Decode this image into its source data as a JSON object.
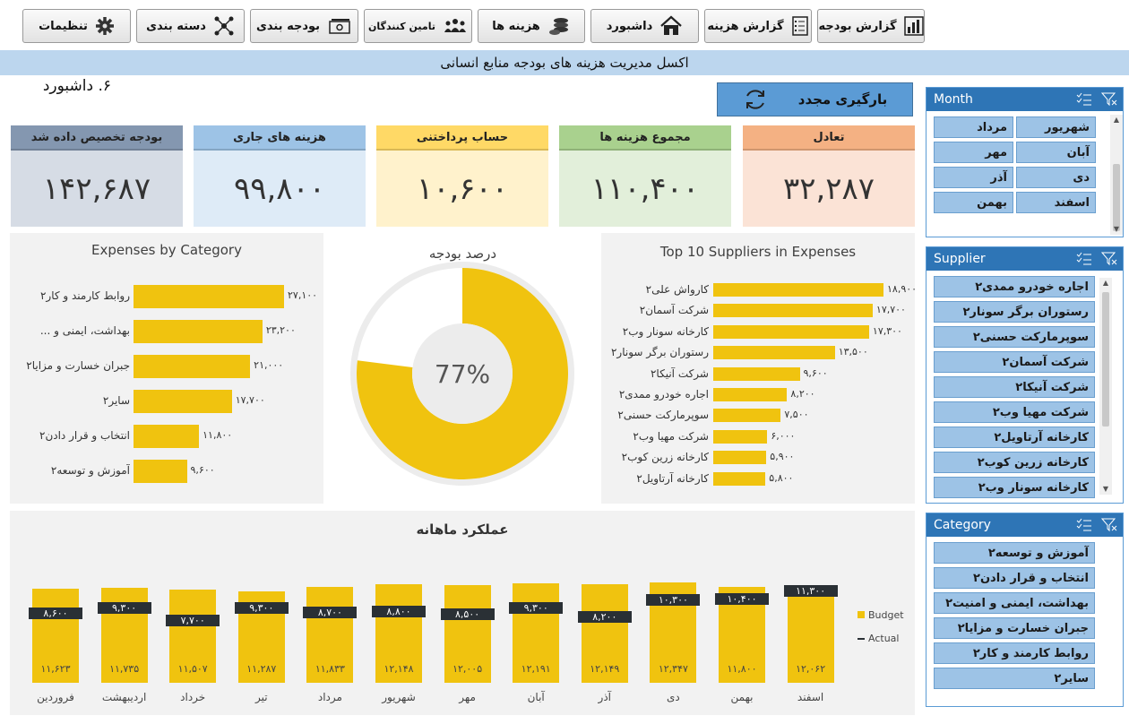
{
  "toolbar": {
    "buttons": [
      {
        "label": "گزارش بودجه",
        "icon": "bar-chart-icon"
      },
      {
        "label": "گزارش هزینه",
        "icon": "checklist-icon"
      },
      {
        "label": "داشبورد",
        "icon": "home-icon"
      },
      {
        "label": "هزینه ها",
        "icon": "coins-icon"
      },
      {
        "label": "تامین کنندگان",
        "icon": "people-icon"
      },
      {
        "label": "بودجه بندی",
        "icon": "money-icon"
      },
      {
        "label": "دسته بندی",
        "icon": "network-icon"
      },
      {
        "label": "تنظیمات",
        "icon": "gear-icon"
      }
    ]
  },
  "banner": "اکسل مدیریت هزینه های بودجه منابع انسانی",
  "dashboard_title": "۶. داشبورد",
  "reload_label": "بارگیری مجدد",
  "kpis": [
    {
      "label": "تعادل",
      "value": "۳۲,۲۸۷",
      "head_color": "#f4b183",
      "body_color": "#fbe3d6"
    },
    {
      "label": "مجموع هزینه ها",
      "value": "۱۱۰,۴۰۰",
      "head_color": "#a9d18e",
      "body_color": "#e2efda"
    },
    {
      "label": "حساب پرداختنی",
      "value": "۱۰,۶۰۰",
      "head_color": "#ffd966",
      "body_color": "#fff2cc"
    },
    {
      "label": "هزینه های جاری",
      "value": "۹۹,۸۰۰",
      "head_color": "#9dc3e6",
      "body_color": "#deebf7"
    },
    {
      "label": "بودجه تخصیص داده شد",
      "value": "۱۴۲,۶۸۷",
      "head_color": "#8497b0",
      "body_color": "#d6dce5"
    }
  ],
  "expenses_by_category": {
    "title": "Expenses by Category",
    "rows": [
      {
        "label": "روابط کارمند و کار۲",
        "value": 27100,
        "value_text": "۲۷,۱۰۰"
      },
      {
        "label": "بهداشت، ایمنی و ...",
        "value": 23200,
        "value_text": "۲۳,۲۰۰"
      },
      {
        "label": "جبران خسارت و مزایا۲",
        "value": 21000,
        "value_text": "۲۱,۰۰۰"
      },
      {
        "label": "سایر۲",
        "value": 17700,
        "value_text": "۱۷,۷۰۰"
      },
      {
        "label": "انتخاب و قرار دادن۲",
        "value": 11800,
        "value_text": "۱۱,۸۰۰"
      },
      {
        "label": "آموزش و توسعه۲",
        "value": 9600,
        "value_text": "۹,۶۰۰"
      }
    ]
  },
  "budget_percent": {
    "title": "درصد بودجه",
    "value": 0.77,
    "label": "77%"
  },
  "top_suppliers": {
    "title": "Top 10 Suppliers in Expenses",
    "rows": [
      {
        "label": "کارواش علی۲",
        "value": 18900,
        "value_text": "۱۸,۹۰۰"
      },
      {
        "label": "شرکت آسمان۲",
        "value": 17700,
        "value_text": "۱۷,۷۰۰"
      },
      {
        "label": "کارخانه سونار وب۲",
        "value": 17300,
        "value_text": "۱۷,۳۰۰"
      },
      {
        "label": "رستوران برگر سونار۲",
        "value": 13500,
        "value_text": "۱۳,۵۰۰"
      },
      {
        "label": "شرکت آنیکا۲",
        "value": 9600,
        "value_text": "۹,۶۰۰"
      },
      {
        "label": "اجاره خودرو ممدی۲",
        "value": 8200,
        "value_text": "۸,۲۰۰"
      },
      {
        "label": "سوپرمارکت حسنی۲",
        "value": 7500,
        "value_text": "۷,۵۰۰"
      },
      {
        "label": "شرکت مهیا وب۲",
        "value": 6000,
        "value_text": "۶,۰۰۰"
      },
      {
        "label": "کارخانه زرین کوب۲",
        "value": 5900,
        "value_text": "۵,۹۰۰"
      },
      {
        "label": "کارخانه آرتاویل۲",
        "value": 5800,
        "value_text": "۵,۸۰۰"
      }
    ]
  },
  "chart_data": {
    "type": "bar",
    "title": "عملکرد ماهانه",
    "categories": [
      "فروردین",
      "اردیبهشت",
      "خرداد",
      "تیر",
      "مرداد",
      "شهریور",
      "مهر",
      "آبان",
      "آذر",
      "دی",
      "بهمن",
      "اسفند"
    ],
    "series": [
      {
        "name": "Budget",
        "values": [
          11623,
          11735,
          11507,
          11287,
          11833,
          12148,
          12005,
          12191,
          12149,
          12347,
          11800,
          12062
        ],
        "labels": [
          "۱۱,۶۲۳",
          "۱۱,۷۳۵",
          "۱۱,۵۰۷",
          "۱۱,۲۸۷",
          "۱۱,۸۳۳",
          "۱۲,۱۴۸",
          "۱۲,۰۰۵",
          "۱۲,۱۹۱",
          "۱۲,۱۴۹",
          "۱۲,۳۴۷",
          "۱۱,۸۰۰",
          "۱۲,۰۶۲"
        ]
      },
      {
        "name": "Actual",
        "values": [
          8600,
          9300,
          7700,
          9300,
          8700,
          8800,
          8500,
          9300,
          8200,
          10300,
          10400,
          11300
        ],
        "labels": [
          "۸,۶۰۰",
          "۹,۳۰۰",
          "۷,۷۰۰",
          "۹,۳۰۰",
          "۸,۷۰۰",
          "۸,۸۰۰",
          "۸,۵۰۰",
          "۹,۳۰۰",
          "۸,۲۰۰",
          "۱۰,۳۰۰",
          "۱۰,۴۰۰",
          "۱۱,۳۰۰"
        ]
      }
    ],
    "legend": [
      "Budget",
      "Actual"
    ],
    "legend_position": "right",
    "colors": {
      "budget": "#f0c30f",
      "actual": "#2a3035"
    }
  },
  "slicers": {
    "month": {
      "title": "Month",
      "items": [
        "شهریور",
        "مرداد",
        "آبان",
        "مهر",
        "دی",
        "آذر",
        "اسفند",
        "بهمن"
      ]
    },
    "supplier": {
      "title": "Supplier",
      "items": [
        "اجاره خودرو ممدی۲",
        "رستوران برگر سونار۲",
        "سوپرمارکت حسنی۲",
        "شرکت آسمان۲",
        "شرکت آنیکا۲",
        "شرکت مهیا وب۲",
        "کارخانه آرتاویل۲",
        "کارخانه زرین کوب۲",
        "کارخانه سونار وب۲"
      ]
    },
    "category": {
      "title": "Category",
      "items": [
        "آموزش و توسعه۲",
        "انتخاب و قرار دادن۲",
        "بهداشت، ایمنی و امنیت۲",
        "جبران خسارت و مزایا۲",
        "روابط کارمند و کار۲",
        "سایر۲"
      ]
    }
  }
}
